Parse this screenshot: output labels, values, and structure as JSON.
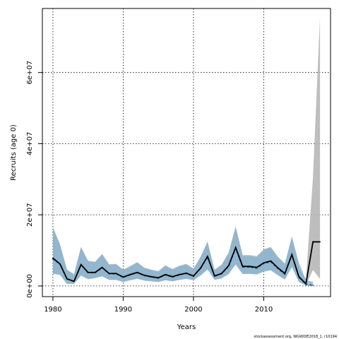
{
  "chart_data": {
    "type": "line",
    "title": "",
    "xlabel": "Years",
    "ylabel": "Recruits (age 0)",
    "xlim": [
      1978.5,
      2019.5
    ],
    "ylim": [
      -3000000,
      78000000
    ],
    "x_ticks": [
      1980,
      1990,
      2000,
      2010
    ],
    "x_tick_labels": [
      "1980",
      "1990",
      "2000",
      "2010"
    ],
    "y_ticks": [
      0,
      20000000,
      40000000,
      60000000
    ],
    "y_tick_labels": [
      "0e+00",
      "2e+07",
      "4e+07",
      "6e+07"
    ],
    "grid": true,
    "footnote": "stockassessment.org, WGWIDE2018_1, r10194",
    "series": [
      {
        "role": "assessment-2018",
        "color": "#000000",
        "band_color": "#b3b3b3",
        "x": [
          1980,
          1981,
          1982,
          1983,
          1984,
          1985,
          1986,
          1987,
          1988,
          1989,
          1990,
          1991,
          1992,
          1993,
          1994,
          1995,
          1996,
          1997,
          1998,
          1999,
          2000,
          2001,
          2002,
          2003,
          2004,
          2005,
          2006,
          2007,
          2008,
          2009,
          2010,
          2011,
          2012,
          2013,
          2014,
          2015,
          2016,
          2017,
          2018
        ],
        "values": [
          7800000,
          6200000,
          2000000,
          1300000,
          6000000,
          3800000,
          3800000,
          5200000,
          3500000,
          3500000,
          2500000,
          3200000,
          3800000,
          3000000,
          2600000,
          2300000,
          3200000,
          2600000,
          3200000,
          3600000,
          2800000,
          5000000,
          8300000,
          2800000,
          3500000,
          5700000,
          10800000,
          5500000,
          5500000,
          5200000,
          6500000,
          7000000,
          5100000,
          3500000,
          8800000,
          2600000,
          600000,
          12400000,
          12400000
        ],
        "lower": [
          3500000,
          3200000,
          600000,
          600000,
          3000000,
          2000000,
          2300000,
          2800000,
          1800000,
          1800000,
          1200000,
          1700000,
          2100000,
          1600000,
          1400000,
          1200000,
          1700000,
          1400000,
          1800000,
          2100000,
          1700000,
          3000000,
          4800000,
          1800000,
          2200000,
          3500000,
          6300000,
          3500000,
          3600000,
          3400000,
          4200000,
          4600000,
          3200000,
          2000000,
          5500000,
          1300000,
          200000,
          4500000,
          2000000
        ],
        "upper": [
          16500000,
          11800000,
          4600000,
          3300000,
          11000000,
          7100000,
          6800000,
          9000000,
          6100000,
          6200000,
          4600000,
          5600000,
          6700000,
          5200000,
          4600000,
          4200000,
          5800000,
          4800000,
          5700000,
          6200000,
          4900000,
          8200000,
          12500000,
          4600000,
          6000000,
          9400000,
          16800000,
          8700000,
          8700000,
          8400000,
          10300000,
          11000000,
          8300000,
          6300000,
          13800000,
          5000000,
          2000000,
          30500000,
          75500000
        ]
      },
      {
        "role": "assessment-previous",
        "color": "#1f4f8a",
        "band_color": "#89b5d0",
        "x": [
          1980,
          1981,
          1982,
          1983,
          1984,
          1985,
          1986,
          1987,
          1988,
          1989,
          1990,
          1991,
          1992,
          1993,
          1994,
          1995,
          1996,
          1997,
          1998,
          1999,
          2000,
          2001,
          2002,
          2003,
          2004,
          2005,
          2006,
          2007,
          2008,
          2009,
          2010,
          2011,
          2012,
          2013,
          2014,
          2015,
          2016,
          2017
        ],
        "values": [
          7600000,
          6100000,
          2000000,
          1300000,
          5900000,
          3700000,
          3700000,
          5100000,
          3400000,
          3400000,
          2400000,
          3100000,
          3700000,
          2900000,
          2500000,
          2200000,
          3100000,
          2500000,
          3100000,
          3500000,
          2700000,
          4900000,
          8100000,
          2700000,
          3400000,
          5500000,
          10500000,
          5300000,
          5300000,
          5000000,
          6300000,
          6800000,
          4900000,
          3300000,
          8700000,
          2400000,
          500000,
          200000
        ],
        "lower": [
          3400000,
          3100000,
          600000,
          600000,
          2900000,
          1900000,
          2200000,
          2700000,
          1700000,
          1700000,
          1100000,
          1600000,
          2000000,
          1500000,
          1300000,
          1100000,
          1600000,
          1300000,
          1700000,
          2000000,
          1600000,
          2900000,
          4600000,
          1700000,
          2100000,
          3300000,
          6000000,
          3300000,
          3400000,
          3200000,
          4000000,
          4400000,
          3000000,
          1800000,
          5300000,
          1100000,
          100000,
          0
        ],
        "upper": [
          16300000,
          11600000,
          4500000,
          3200000,
          10800000,
          6900000,
          6600000,
          8800000,
          5900000,
          6000000,
          4400000,
          5400000,
          6500000,
          5000000,
          4400000,
          4000000,
          5600000,
          4600000,
          5500000,
          6000000,
          4700000,
          8000000,
          12300000,
          4400000,
          5800000,
          9100000,
          16300000,
          8400000,
          8400000,
          8100000,
          10000000,
          10700000,
          8000000,
          6000000,
          13900000,
          6500000,
          1600000,
          1200000
        ]
      }
    ]
  }
}
